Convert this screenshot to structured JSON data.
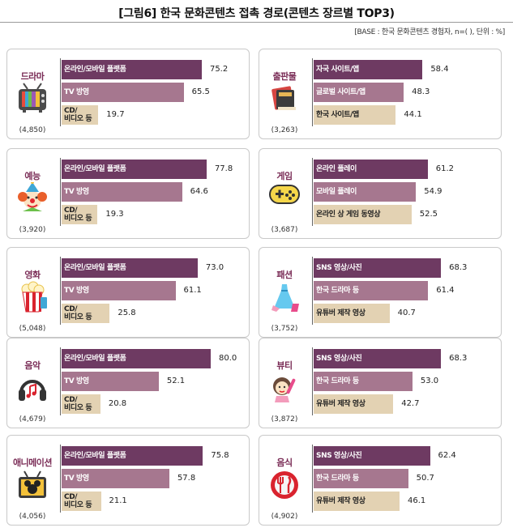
{
  "title": "[그림6] 한국 문화콘텐츠 접촉 경로(콘텐츠 장르별 TOP3)",
  "base_note": "[BASE : 한국 문화콘텐츠 경험자, n=( ), 단위 : %]",
  "colors": {
    "rank1": "#6e3a62",
    "rank2": "#a6778f",
    "rank3": "#e3d2b3",
    "label_light": "#ffffff",
    "label_dark": "#222222",
    "category": "#7a2c56"
  },
  "chart_data": [
    {
      "type": "bar",
      "category": "드라마",
      "n": "(4,850)",
      "icon": "tv-icon",
      "series": [
        {
          "label": "온라인/모바일 플랫폼",
          "value": 75.2,
          "value_text": "75.2"
        },
        {
          "label": "TV 방영",
          "value": 65.5,
          "value_text": "65.5"
        },
        {
          "label": "CD/\n비디오 등",
          "value": 19.7,
          "value_text": "19.7"
        }
      ]
    },
    {
      "type": "bar",
      "category": "출판물",
      "n": "(3,263)",
      "icon": "books-icon",
      "series": [
        {
          "label": "자국 사이트/앱",
          "value": 58.4,
          "value_text": "58.4"
        },
        {
          "label": "글로벌 사이트/앱",
          "value": 48.3,
          "value_text": "48.3"
        },
        {
          "label": "한국 사이트/앱",
          "value": 44.1,
          "value_text": "44.1"
        }
      ]
    },
    {
      "type": "bar",
      "category": "예능",
      "n": "(3,920)",
      "icon": "clown-icon",
      "series": [
        {
          "label": "온라인/모바일 플랫폼",
          "value": 77.8,
          "value_text": "77.8"
        },
        {
          "label": "TV 방영",
          "value": 64.6,
          "value_text": "64.6"
        },
        {
          "label": "CD/\n비디오 등",
          "value": 19.3,
          "value_text": "19.3"
        }
      ]
    },
    {
      "type": "bar",
      "category": "게임",
      "n": "(3,687)",
      "icon": "gamepad-icon",
      "series": [
        {
          "label": "온라인 플레이",
          "value": 61.2,
          "value_text": "61.2"
        },
        {
          "label": "모바일 플레이",
          "value": 54.9,
          "value_text": "54.9"
        },
        {
          "label": "온라인 상 게임 동영상",
          "value": 52.5,
          "value_text": "52.5"
        }
      ]
    },
    {
      "type": "bar",
      "category": "영화",
      "n": "(5,048)",
      "icon": "popcorn-icon",
      "series": [
        {
          "label": "온라인/모바일 플랫폼",
          "value": 73.0,
          "value_text": "73.0"
        },
        {
          "label": "TV 방영",
          "value": 61.1,
          "value_text": "61.1"
        },
        {
          "label": "CD/\n비디오 등",
          "value": 25.8,
          "value_text": "25.8"
        }
      ]
    },
    {
      "type": "bar",
      "category": "패션",
      "n": "(3,752)",
      "icon": "dress-icon",
      "series": [
        {
          "label": "SNS 영상/사진",
          "value": 68.3,
          "value_text": "68.3"
        },
        {
          "label": "한국 드라마 등",
          "value": 61.4,
          "value_text": "61.4"
        },
        {
          "label": "유튜버 제작 영상",
          "value": 40.7,
          "value_text": "40.7"
        }
      ]
    },
    {
      "type": "bar",
      "category": "음악",
      "n": "(4,679)",
      "icon": "headphones-icon",
      "series": [
        {
          "label": "온라인/모바일 플랫폼",
          "value": 80.0,
          "value_text": "80.0"
        },
        {
          "label": "TV 방영",
          "value": 52.1,
          "value_text": "52.1"
        },
        {
          "label": "CD/\n비디오 등",
          "value": 20.8,
          "value_text": "20.8"
        }
      ]
    },
    {
      "type": "bar",
      "category": "뷰티",
      "n": "(3,872)",
      "icon": "makeup-icon",
      "series": [
        {
          "label": "SNS 영상/사진",
          "value": 68.3,
          "value_text": "68.3"
        },
        {
          "label": "한국 드라마 등",
          "value": 53.0,
          "value_text": "53.0"
        },
        {
          "label": "유튜버 제작 영상",
          "value": 42.7,
          "value_text": "42.7"
        }
      ]
    },
    {
      "type": "bar",
      "category": "애니메이션",
      "n": "(4,056)",
      "icon": "mouse-tv-icon",
      "series": [
        {
          "label": "온라인/모바일 플랫폼",
          "value": 75.8,
          "value_text": "75.8"
        },
        {
          "label": "TV 방영",
          "value": 57.8,
          "value_text": "57.8"
        },
        {
          "label": "CD/\n비디오 등",
          "value": 21.1,
          "value_text": "21.1"
        }
      ]
    },
    {
      "type": "bar",
      "category": "음식",
      "n": "(4,902)",
      "icon": "fork-knife-icon",
      "series": [
        {
          "label": "SNS 영상/사진",
          "value": 62.4,
          "value_text": "62.4"
        },
        {
          "label": "한국 드라마 등",
          "value": 50.7,
          "value_text": "50.7"
        },
        {
          "label": "유튜버 제작 영상",
          "value": 46.1,
          "value_text": "46.1"
        }
      ]
    }
  ]
}
